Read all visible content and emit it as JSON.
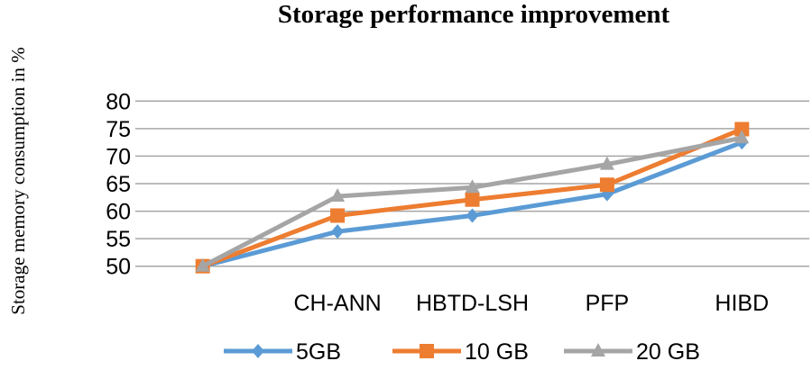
{
  "chart_data": {
    "type": "line",
    "title": "Storage performance improvement",
    "xlabel": "",
    "ylabel": "Storage memory consumption  in %",
    "categories": [
      "",
      "CH-ANN",
      "HBTD-LSH",
      "PFP",
      "HIBD"
    ],
    "ylim": [
      50,
      80
    ],
    "yticks": [
      50,
      55,
      60,
      65,
      70,
      75,
      80
    ],
    "grid": true,
    "legend": "bottom",
    "series": [
      {
        "name": "5GB",
        "color": "#5B9BD5",
        "marker": "diamond",
        "values": [
          50,
          56.3,
          59.2,
          63.1,
          72.5
        ]
      },
      {
        "name": "10 GB",
        "color": "#ED7D31",
        "marker": "square",
        "values": [
          50,
          59.2,
          62.1,
          64.8,
          74.9
        ]
      },
      {
        "name": "20 GB",
        "color": "#A5A5A5",
        "marker": "triangle",
        "values": [
          50,
          62.7,
          64.3,
          68.5,
          73.3
        ]
      }
    ]
  }
}
